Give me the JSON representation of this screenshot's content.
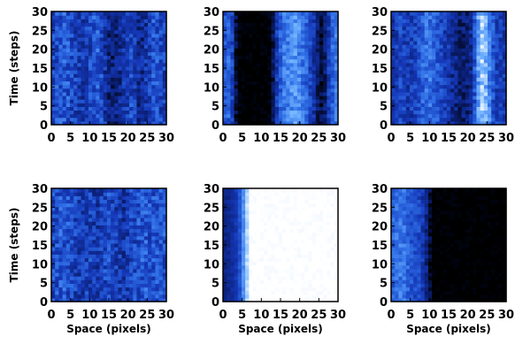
{
  "figure": {
    "rows": 2,
    "cols": 3,
    "xlabel": "Space (pixels)",
    "ylabel": "Time (steps)"
  },
  "colormap": [
    "#000000",
    "#0a1d6e",
    "#1538b8",
    "#2f6fe6",
    "#6fb1ff",
    "#ffffff"
  ],
  "chart_data": [
    {
      "type": "heatmap",
      "panel": "row1-col1",
      "xlim": [
        0,
        30
      ],
      "ylim": [
        0,
        30
      ],
      "xticks": [
        "0",
        "5",
        "10",
        "15",
        "20",
        "25",
        "30"
      ],
      "yticks": [
        "0",
        "5",
        "10",
        "15",
        "20",
        "25",
        "30"
      ],
      "xlabel": "",
      "ylabel": "Time (steps)",
      "column_profile": [
        0.45,
        0.48,
        0.5,
        0.52,
        0.5,
        0.45,
        0.42,
        0.4,
        0.38,
        0.4,
        0.45,
        0.5,
        0.52,
        0.45,
        0.35,
        0.25,
        0.22,
        0.25,
        0.3,
        0.35,
        0.4,
        0.45,
        0.4,
        0.3,
        0.28,
        0.35,
        0.42,
        0.48,
        0.5,
        0.45,
        0.42
      ],
      "noise": 0.16
    },
    {
      "type": "heatmap",
      "panel": "row1-col2",
      "xlim": [
        0,
        30
      ],
      "ylim": [
        0,
        30
      ],
      "xticks": [
        "0",
        "5",
        "10",
        "15",
        "20",
        "25",
        "30"
      ],
      "yticks": [
        "0",
        "5",
        "10",
        "15",
        "20",
        "25",
        "30"
      ],
      "xlabel": "",
      "ylabel": "",
      "column_profile": [
        0.5,
        0.55,
        0.45,
        0.1,
        0.02,
        0.0,
        0.0,
        0.0,
        0.0,
        0.0,
        0.0,
        0.0,
        0.02,
        0.15,
        0.4,
        0.55,
        0.62,
        0.65,
        0.7,
        0.72,
        0.68,
        0.6,
        0.55,
        0.45,
        0.35,
        0.2,
        0.1,
        0.2,
        0.4,
        0.55,
        0.6
      ],
      "noise": 0.12
    },
    {
      "type": "heatmap",
      "panel": "row1-col3",
      "xlim": [
        0,
        30
      ],
      "ylim": [
        0,
        30
      ],
      "xticks": [
        "0",
        "5",
        "10",
        "15",
        "20",
        "25",
        "30"
      ],
      "yticks": [
        "0",
        "5",
        "10",
        "15",
        "20",
        "25",
        "30"
      ],
      "xlabel": "",
      "ylabel": "",
      "column_profile": [
        0.35,
        0.4,
        0.45,
        0.42,
        0.38,
        0.4,
        0.45,
        0.5,
        0.55,
        0.6,
        0.58,
        0.55,
        0.5,
        0.45,
        0.4,
        0.35,
        0.3,
        0.25,
        0.22,
        0.2,
        0.22,
        0.3,
        0.5,
        0.75,
        0.85,
        0.8,
        0.65,
        0.5,
        0.42,
        0.4,
        0.38
      ],
      "noise": 0.13
    },
    {
      "type": "heatmap",
      "panel": "row2-col1",
      "xlim": [
        0,
        30
      ],
      "ylim": [
        0,
        30
      ],
      "xticks": [
        "0",
        "5",
        "10",
        "15",
        "20",
        "25",
        "30"
      ],
      "yticks": [
        "0",
        "5",
        "10",
        "15",
        "20",
        "25",
        "30"
      ],
      "xlabel": "Space (pixels)",
      "ylabel": "Time (steps)",
      "column_profile": [
        0.45,
        0.48,
        0.5,
        0.5,
        0.48,
        0.45,
        0.42,
        0.4,
        0.38,
        0.4,
        0.42,
        0.38,
        0.35,
        0.4,
        0.45,
        0.48,
        0.45,
        0.4,
        0.38,
        0.35,
        0.38,
        0.42,
        0.45,
        0.48,
        0.5,
        0.52,
        0.5,
        0.48,
        0.5,
        0.52,
        0.5
      ],
      "noise": 0.16
    },
    {
      "type": "heatmap",
      "panel": "row2-col2",
      "xlim": [
        0,
        30
      ],
      "ylim": [
        0,
        30
      ],
      "xticks": [
        "0",
        "5",
        "10",
        "15",
        "20",
        "25",
        "30"
      ],
      "yticks": [
        "0",
        "5",
        "10",
        "15",
        "20",
        "25",
        "30"
      ],
      "xlabel": "Space (pixels)",
      "ylabel": "",
      "column_profile": [
        0.25,
        0.28,
        0.32,
        0.38,
        0.5,
        0.7,
        0.9,
        1.0,
        1.0,
        1.0,
        1.0,
        1.0,
        1.0,
        1.0,
        1.0,
        1.0,
        1.0,
        1.0,
        1.0,
        1.0,
        1.0,
        1.0,
        1.0,
        1.0,
        1.0,
        1.0,
        1.0,
        1.0,
        1.0,
        1.0,
        1.0
      ],
      "noise": 0.05
    },
    {
      "type": "heatmap",
      "panel": "row2-col3",
      "xlim": [
        0,
        30
      ],
      "ylim": [
        0,
        30
      ],
      "xticks": [
        "0",
        "5",
        "10",
        "15",
        "20",
        "25",
        "30"
      ],
      "yticks": [
        "0",
        "5",
        "10",
        "15",
        "20",
        "25",
        "30"
      ],
      "xlabel": "Space (pixels)",
      "ylabel": "",
      "column_profile": [
        0.55,
        0.6,
        0.62,
        0.6,
        0.55,
        0.5,
        0.48,
        0.45,
        0.38,
        0.25,
        0.1,
        0.0,
        0.0,
        0.0,
        0.0,
        0.0,
        0.0,
        0.0,
        0.0,
        0.0,
        0.0,
        0.0,
        0.0,
        0.0,
        0.0,
        0.0,
        0.0,
        0.0,
        0.0,
        0.0,
        0.0
      ],
      "noise": 0.1
    }
  ]
}
